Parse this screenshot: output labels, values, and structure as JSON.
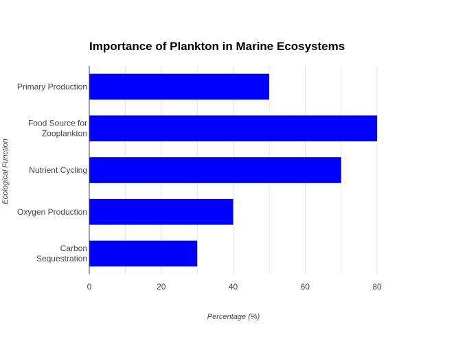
{
  "chart_data": {
    "type": "bar",
    "orientation": "horizontal",
    "title": "Importance of Plankton in Marine Ecosystems",
    "xlabel": "Percentage (%)",
    "ylabel": "Ecological Function",
    "categories": [
      [
        "Primary Production"
      ],
      [
        "Food Source for",
        "Zooplankton"
      ],
      [
        "Nutrient Cycling"
      ],
      [
        "Oxygen Production"
      ],
      [
        "Carbon",
        "Sequestration"
      ]
    ],
    "values": [
      50,
      80,
      70,
      40,
      30
    ],
    "xlim": [
      0,
      84
    ],
    "xticks": [
      0,
      20,
      40,
      60,
      80
    ],
    "grid": true,
    "bar_color": "#0000ff",
    "gridline_color": "#e2e2e2"
  }
}
